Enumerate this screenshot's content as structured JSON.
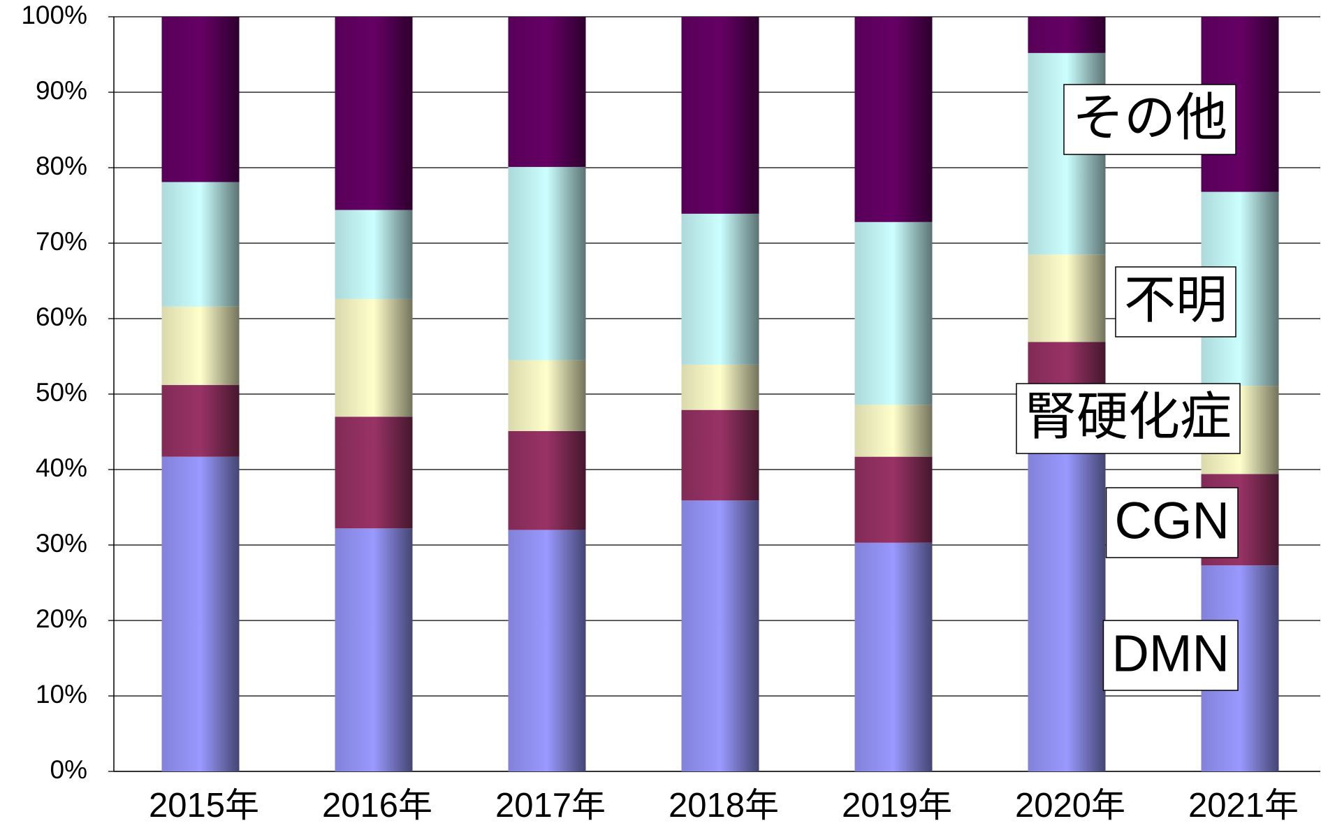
{
  "chart_data": {
    "type": "stacked-bar",
    "categories": [
      "2015年",
      "2016年",
      "2017年",
      "2018年",
      "2019年",
      "2020年",
      "2021年"
    ],
    "series": [
      {
        "name": "DMN",
        "color": "#9999ff",
        "values": [
          41.7,
          32.2,
          32.0,
          35.9,
          30.3,
          42.5,
          27.3
        ]
      },
      {
        "name": "CGN",
        "color": "#993366",
        "values": [
          9.5,
          14.8,
          13.1,
          12.0,
          11.4,
          14.4,
          12.1
        ]
      },
      {
        "name": "腎硬化症",
        "color": "#ffffcc",
        "values": [
          10.4,
          15.6,
          9.4,
          6.0,
          6.9,
          11.6,
          11.7
        ]
      },
      {
        "name": "不明",
        "color": "#ccffff",
        "values": [
          16.5,
          11.8,
          25.6,
          20.0,
          24.2,
          26.7,
          25.7
        ]
      },
      {
        "name": "その他",
        "color": "#660066",
        "values": [
          21.9,
          25.6,
          19.9,
          26.1,
          27.2,
          4.8,
          23.2
        ]
      }
    ],
    "ylim": [
      0,
      100
    ],
    "yticks": [
      {
        "value": 0,
        "label": "0%"
      },
      {
        "value": 10,
        "label": "10%"
      },
      {
        "value": 20,
        "label": "20%"
      },
      {
        "value": 30,
        "label": "30%"
      },
      {
        "value": 40,
        "label": "40%"
      },
      {
        "value": 50,
        "label": "50%"
      },
      {
        "value": 60,
        "label": "60%"
      },
      {
        "value": 70,
        "label": "70%"
      },
      {
        "value": 80,
        "label": "80%"
      },
      {
        "value": 90,
        "label": "90%"
      },
      {
        "value": 100,
        "label": "100%"
      }
    ],
    "grid": true
  }
}
